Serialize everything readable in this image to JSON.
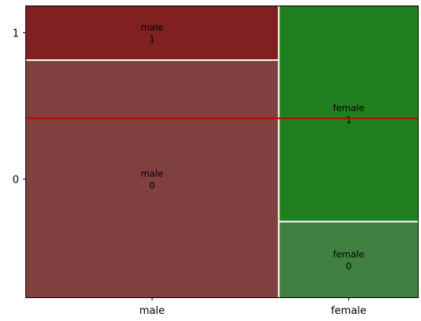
{
  "chart_data": {
    "type": "mosaic",
    "x_categories": [
      "male",
      "female"
    ],
    "y_categories": [
      "0",
      "1"
    ],
    "x_proportions": [
      0.645,
      0.355
    ],
    "tiles": [
      {
        "x": "male",
        "y": "0",
        "fraction_of_column": 0.815,
        "label_top": "male",
        "label_bottom": "0",
        "color": "#804040"
      },
      {
        "x": "male",
        "y": "1",
        "fraction_of_column": 0.185,
        "label_top": "male",
        "label_bottom": "1",
        "color": "#802020"
      },
      {
        "x": "female",
        "y": "0",
        "fraction_of_column": 0.26,
        "label_top": "female",
        "label_bottom": "0",
        "color": "#408040"
      },
      {
        "x": "female",
        "y": "1",
        "fraction_of_column": 0.74,
        "label_top": "female",
        "label_bottom": "1",
        "color": "#208020"
      }
    ],
    "reference_line": {
      "y_fraction": 0.615,
      "color": "#cc0000"
    },
    "xlim": [
      0,
      1
    ],
    "ylim": [
      0,
      1
    ],
    "grid": false,
    "legend": "none"
  }
}
